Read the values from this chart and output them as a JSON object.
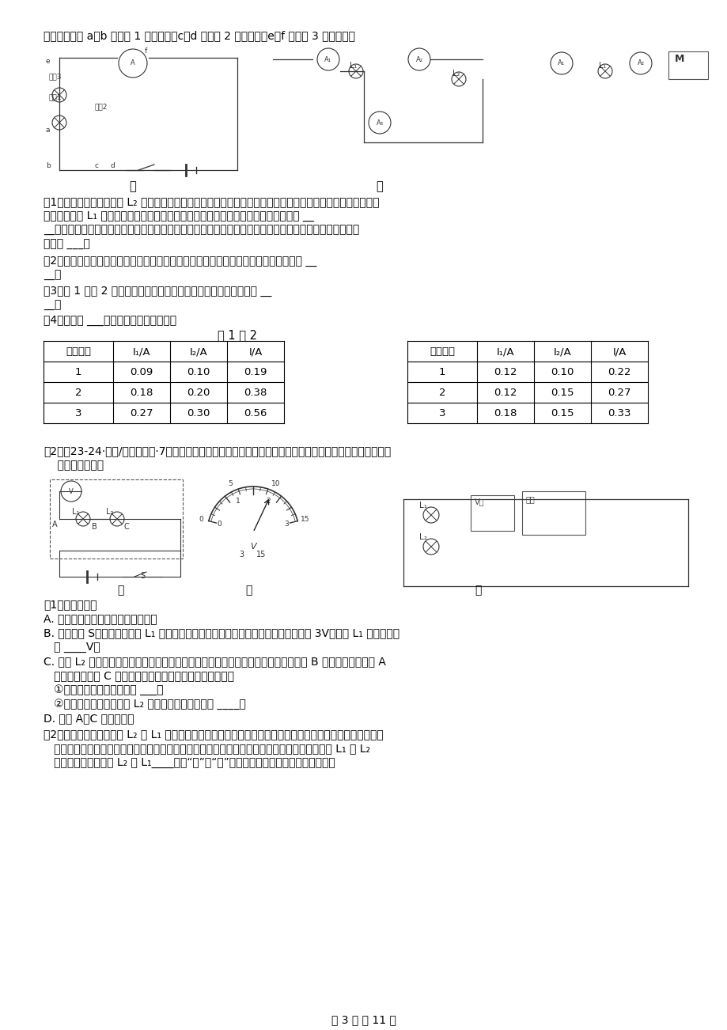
{
  "page_width": 9.2,
  "page_height": 13.02,
  "background_color": "#ffffff",
  "text_color": "#000000",
  "line1": "电路。（其中 a、b 是导线 1 的两端点，c、d 是导线 2 的两端点，e、f 是导线 3 的两端点）",
  "q1_text": "（1）甲图是用电流表测量 L₂ 中电流的连线，经检查发现电流表的接线错误。为了改动尽可能少的线，小明准备",
  "q1_line2": "先用电流表测 L₁ 中的电流，只需要在原连线中改动一根导线一端的位置即可，则应将 __",
  "q1_line3": "__；在以上改动后的基础上，若要用电流表测干路中的电流，也只需再改动一根导线一端的位置即可实现，",
  "q1_line4": "则应将 ___；",
  "q2_text": "（2）图乙是小英小组设计后连接的电路，该实验电路中滑动变阵器所起到的主要作用是 __",
  "q2_line2": "__；",
  "q3_text": "（3）表 1 和表 2 是他们实验时所测量的数据，由实验得出的结论是 __",
  "q3_line2": "__；",
  "q4_text": "（4）其中表 ___是由电路乙测得的数据。",
  "table_title": "表 1 表 2",
  "table1_headers": [
    "实验次数",
    "I₁/A",
    "I₂/A",
    "I/A"
  ],
  "table1_data": [
    [
      "1",
      "0.09",
      "0.10",
      "0.19"
    ],
    [
      "2",
      "0.18",
      "0.20",
      "0.38"
    ],
    [
      "3",
      "0.27",
      "0.30",
      "0.56"
    ]
  ],
  "table2_headers": [
    "实验次数",
    "I₁/A",
    "I₂/A",
    "I/A"
  ],
  "table2_data": [
    [
      "1",
      "0.12",
      "0.10",
      "0.22"
    ],
    [
      "2",
      "0.12",
      "0.15",
      "0.27"
    ],
    [
      "3",
      "0.18",
      "0.15",
      "0.33"
    ]
  ],
  "section2_title": "【2】（23-24·矿口/经开区期中·7分）某小组在对串联电路电压规律进行实验探究时，利用现有的器材按如下步",
  "section2_line2": "    驾进行了操作。",
  "s2_q1_title": "（1）实验步骤：",
  "s2_qa": "A. 按图甲所示的电路图连接好电路；",
  "s2_qb1": "B. 闭合开关 S，用电压表测出 L₁ 两端的电压；电压表示数如图乙所示，若电源电压为 3V，则灯 L₁ 两端的电压",
  "s2_qb2": "   是 ____V；",
  "s2_qc1": "C. 在测 L₂ 两端的电压时，小张同学为了节省实验时间，采用以下方法：电压表所接的 B 接点不动，只断开 A",
  "s2_qc2": "   接点，并改接到 C 接点上。小张的实验操作存在的问题是：",
  "s2_qc3": "   ①在拆接电路时，开关没有 ___；",
  "s2_qc4": "   ②小张用上面的方法测量 L₂ 两端的电压时，电压表 ____。",
  "s2_qd": "D. 测出 A、C 间的电压。",
  "s2_q2_1": "（2）小张在实验中发现灯 L₂ 比 L₁ 亮，他认为产生这种现象的原因是电流从电源正极流向负极的过程中逐渐减",
  "s2_q2_2": "   小。小明想通过测量电流大小来证明小张的观点是错误的，但实验桌上没有电流表，于是他将灯 L₁ 和 L₂",
  "s2_q2_3": "   位置互换，若发现灯 L₂ 比 L₁____（填“亮”或“暗”），即可证明小张的观点是错误的。",
  "page_footer": "第 3 页 共 11 页"
}
